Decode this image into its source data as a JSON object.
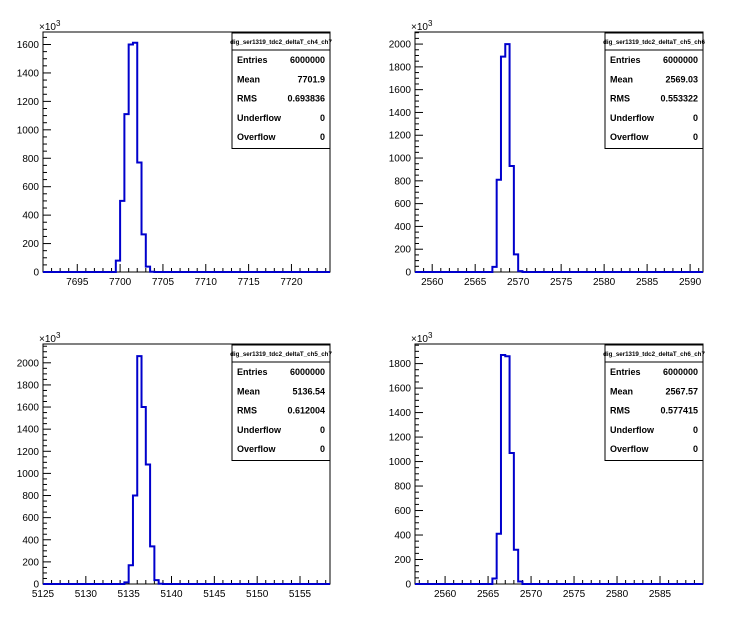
{
  "chart_data": [
    {
      "type": "histogram",
      "stats_title": "dig_ser1319_tdc2_deltaT_ch4_ch7",
      "stats": [
        {
          "label": "Entries",
          "value": "6000000"
        },
        {
          "label": "Mean",
          "value": "7701.9"
        },
        {
          "label": "RMS",
          "value": "0.693836"
        },
        {
          "label": "Underflow",
          "value": "0"
        },
        {
          "label": "Overflow",
          "value": "0"
        }
      ],
      "y_multiplier": "×10",
      "y_multiplier_exp": "3",
      "xlim": [
        7691,
        7724.5
      ],
      "ylim": [
        0,
        1688
      ],
      "x_ticks": [
        7695,
        7700,
        7705,
        7710,
        7715,
        7720
      ],
      "y_ticks": [
        0,
        200,
        400,
        600,
        800,
        1000,
        1200,
        1400,
        1600
      ],
      "bin_width": 0.5,
      "bins": [
        {
          "x": 7699.5,
          "y": 80
        },
        {
          "x": 7700.0,
          "y": 500
        },
        {
          "x": 7700.5,
          "y": 1110
        },
        {
          "x": 7701.0,
          "y": 1600
        },
        {
          "x": 7701.5,
          "y": 1612
        },
        {
          "x": 7702.0,
          "y": 770
        },
        {
          "x": 7702.5,
          "y": 265
        },
        {
          "x": 7703.0,
          "y": 38
        },
        {
          "x": 7703.5,
          "y": 2
        }
      ]
    },
    {
      "type": "histogram",
      "stats_title": "dig_ser1319_tdc2_deltaT_ch5_ch6",
      "stats": [
        {
          "label": "Entries",
          "value": "6000000"
        },
        {
          "label": "Mean",
          "value": "2569.03"
        },
        {
          "label": "RMS",
          "value": "0.553322"
        },
        {
          "label": "Underflow",
          "value": "0"
        },
        {
          "label": "Overflow",
          "value": "0"
        }
      ],
      "y_multiplier": "×10",
      "y_multiplier_exp": "3",
      "xlim": [
        2558,
        2591.5
      ],
      "ylim": [
        0,
        2106
      ],
      "x_ticks": [
        2560,
        2565,
        2570,
        2575,
        2580,
        2585,
        2590
      ],
      "y_ticks": [
        0,
        200,
        400,
        600,
        800,
        1000,
        1200,
        1400,
        1600,
        1800,
        2000
      ],
      "bin_width": 0.5,
      "bins": [
        {
          "x": 2567.0,
          "y": 45
        },
        {
          "x": 2567.5,
          "y": 810
        },
        {
          "x": 2568.0,
          "y": 1890
        },
        {
          "x": 2568.5,
          "y": 2000
        },
        {
          "x": 2569.0,
          "y": 930
        },
        {
          "x": 2569.5,
          "y": 155
        },
        {
          "x": 2570.0,
          "y": 8
        }
      ]
    },
    {
      "type": "histogram",
      "stats_title": "dig_ser1319_tdc2_deltaT_ch5_ch7",
      "stats": [
        {
          "label": "Entries",
          "value": "6000000"
        },
        {
          "label": "Mean",
          "value": "5136.54"
        },
        {
          "label": "RMS",
          "value": "0.612004"
        },
        {
          "label": "Underflow",
          "value": "0"
        },
        {
          "label": "Overflow",
          "value": "0"
        }
      ],
      "y_multiplier": "×10",
      "y_multiplier_exp": "3",
      "xlim": [
        5125,
        5158.5
      ],
      "ylim": [
        0,
        2170
      ],
      "x_ticks": [
        5125,
        5130,
        5135,
        5140,
        5145,
        5150,
        5155
      ],
      "y_ticks": [
        0,
        200,
        400,
        600,
        800,
        1000,
        1200,
        1400,
        1600,
        1800,
        2000
      ],
      "bin_width": 0.5,
      "bins": [
        {
          "x": 5134.5,
          "y": 15
        },
        {
          "x": 5135.0,
          "y": 170
        },
        {
          "x": 5135.5,
          "y": 800
        },
        {
          "x": 5136.0,
          "y": 2060
        },
        {
          "x": 5136.5,
          "y": 1600
        },
        {
          "x": 5137.0,
          "y": 1080
        },
        {
          "x": 5137.5,
          "y": 340
        },
        {
          "x": 5138.0,
          "y": 35
        },
        {
          "x": 5138.5,
          "y": 2
        }
      ]
    },
    {
      "type": "histogram",
      "stats_title": "dig_ser1319_tdc2_deltaT_ch6_ch7",
      "stats": [
        {
          "label": "Entries",
          "value": "6000000"
        },
        {
          "label": "Mean",
          "value": "2567.57"
        },
        {
          "label": "RMS",
          "value": "0.577415"
        },
        {
          "label": "Underflow",
          "value": "0"
        },
        {
          "label": "Overflow",
          "value": "0"
        }
      ],
      "y_multiplier": "×10",
      "y_multiplier_exp": "3",
      "xlim": [
        2556.5,
        2590
      ],
      "ylim": [
        0,
        1960
      ],
      "x_ticks": [
        2560,
        2565,
        2570,
        2575,
        2580,
        2585
      ],
      "y_ticks": [
        0,
        200,
        400,
        600,
        800,
        1000,
        1200,
        1400,
        1600,
        1800
      ],
      "bin_width": 0.5,
      "bins": [
        {
          "x": 2565.5,
          "y": 45
        },
        {
          "x": 2566.0,
          "y": 410
        },
        {
          "x": 2566.5,
          "y": 1870
        },
        {
          "x": 2567.0,
          "y": 1860
        },
        {
          "x": 2567.5,
          "y": 1070
        },
        {
          "x": 2568.0,
          "y": 280
        },
        {
          "x": 2568.5,
          "y": 20
        }
      ]
    }
  ],
  "style": {
    "line_color": "#0000cc",
    "axis_color": "#000000",
    "background": "#ffffff"
  }
}
